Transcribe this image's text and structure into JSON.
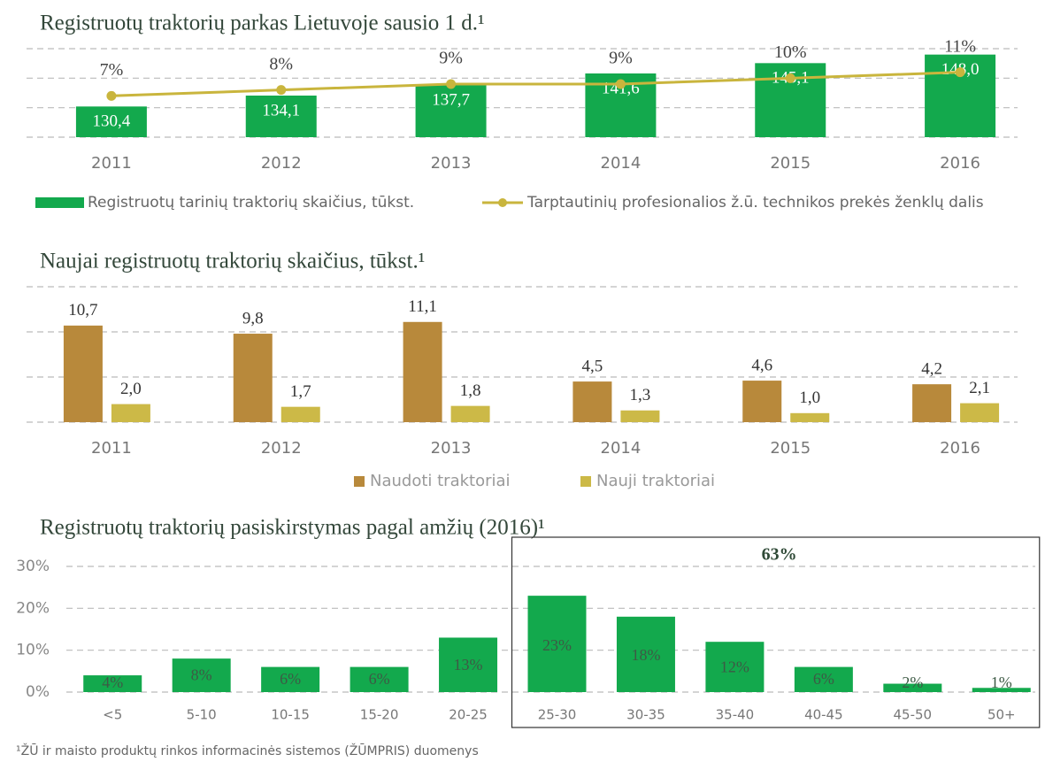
{
  "chart_data": [
    {
      "type": "bar_line",
      "title": "Registruotų traktorių parkas Lietuvoje sausio 1 d.¹",
      "categories": [
        "2011",
        "2012",
        "2013",
        "2014",
        "2015",
        "2016"
      ],
      "series": [
        {
          "name": "Registruotų tarinių traktorių skaičius, tūkst.",
          "type": "bar",
          "color": "#13a94d",
          "values": [
            130.4,
            134.1,
            137.7,
            141.6,
            145.1,
            148.0
          ],
          "value_labels": [
            "130,4",
            "134,1",
            "137,7",
            "141,6",
            "145,1",
            "148,0"
          ]
        },
        {
          "name": "Tarptautinių profesionalios ž.ū. technikos prekės ženklų dalis",
          "type": "line",
          "axis": "y2",
          "color": "#c9b53d",
          "values": [
            7,
            8,
            9,
            9,
            10,
            11
          ],
          "value_labels": [
            "7%",
            "8%",
            "9%",
            "9%",
            "10%",
            "11%"
          ]
        }
      ],
      "ylim": [
        120,
        150
      ],
      "yticks": [
        120,
        130,
        140,
        150
      ],
      "y2lim": [
        0,
        15
      ],
      "grid": true
    },
    {
      "type": "bar",
      "title": "Naujai registruotų traktorių skaičius, tūkst.¹",
      "categories": [
        "2011",
        "2012",
        "2013",
        "2014",
        "2015",
        "2016"
      ],
      "series": [
        {
          "name": "Naudoti traktoriai",
          "color": "#b8893b",
          "values": [
            10.7,
            9.8,
            11.1,
            4.5,
            4.6,
            4.2
          ],
          "value_labels": [
            "10,7",
            "9,8",
            "11,1",
            "4,5",
            "4,6",
            "4,2"
          ]
        },
        {
          "name": "Nauji traktoriai",
          "color": "#ccb947",
          "values": [
            2.0,
            1.7,
            1.8,
            1.3,
            1.0,
            2.1
          ],
          "value_labels": [
            "2,0",
            "1,7",
            "1,8",
            "1,3",
            "1,0",
            "2,1"
          ]
        }
      ],
      "ylim": [
        0,
        15
      ],
      "yticks": [
        0,
        5,
        10,
        15
      ],
      "grid": true
    },
    {
      "type": "bar",
      "title": "Registruotų traktorių pasiskirstymas pagal amžių (2016)¹",
      "categories": [
        "<5",
        "5-10",
        "10-15",
        "15-20",
        "20-25",
        "25-30",
        "30-35",
        "35-40",
        "40-45",
        "45-50",
        "50+"
      ],
      "series": [
        {
          "color": "#13a94d",
          "values": [
            4,
            8,
            6,
            6,
            13,
            23,
            18,
            12,
            6,
            2,
            1
          ],
          "value_labels": [
            "4%",
            "8%",
            "6%",
            "6%",
            "13%",
            "23%",
            "18%",
            "12%",
            "6%",
            "2%",
            "1%"
          ]
        }
      ],
      "ylim": [
        0,
        30
      ],
      "yticks": [
        {
          "value": 0,
          "label": "0%"
        },
        {
          "value": 10,
          "label": "10%"
        },
        {
          "value": 20,
          "label": "20%"
        },
        {
          "value": 30,
          "label": "30%"
        }
      ],
      "grid": true,
      "annotation": "63%"
    }
  ],
  "footnote": "¹ŽŪ ir maisto produktų rinkos informacinės sistemos (ŽŪMPRIS) duomenys"
}
